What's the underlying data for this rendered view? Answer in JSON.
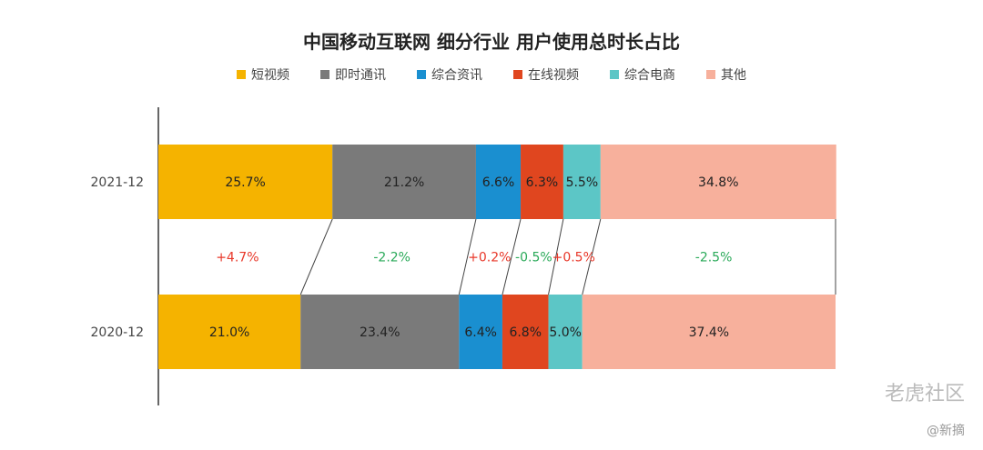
{
  "chart_data": {
    "type": "bar",
    "title": "中国移动互联网 细分行业 用户使用总时长占比",
    "categories": [
      "2021-12",
      "2020-12"
    ],
    "series": [
      {
        "name": "短视频",
        "values": [
          25.7,
          21.0
        ],
        "labels": [
          "25.7%",
          "21.0%"
        ],
        "color": "#F5B300"
      },
      {
        "name": "即时通讯",
        "values": [
          21.2,
          23.4
        ],
        "labels": [
          "21.2%",
          "23.4%"
        ],
        "color": "#7A7A7A"
      },
      {
        "name": "综合资讯",
        "values": [
          6.6,
          6.4
        ],
        "labels": [
          "6.6%",
          "6.4%"
        ],
        "color": "#1A8FD0"
      },
      {
        "name": "在线视频",
        "values": [
          6.3,
          6.8
        ],
        "labels": [
          "6.3%",
          "6.8%"
        ],
        "color": "#E0461F"
      },
      {
        "name": "综合电商",
        "values": [
          5.5,
          5.0
        ],
        "labels": [
          "5.5%",
          "5.0%"
        ],
        "color": "#5CC6C6"
      },
      {
        "name": "其他",
        "values": [
          34.8,
          37.4
        ],
        "labels": [
          "34.8%",
          "37.4%"
        ],
        "color": "#F7B09C"
      }
    ],
    "changes": [
      "+4.7%",
      "-2.2%",
      "+0.2%",
      "-0.5%",
      "+0.5%",
      "-2.5%"
    ],
    "change_colors": {
      "up": "#E8382A",
      "down": "#2BAA5A"
    },
    "stacked": true,
    "orientation": "horizontal",
    "xlim": [
      0,
      100
    ],
    "legend_position": "top"
  },
  "watermark": {
    "primary": "老虎社区",
    "secondary": "@新摘"
  }
}
